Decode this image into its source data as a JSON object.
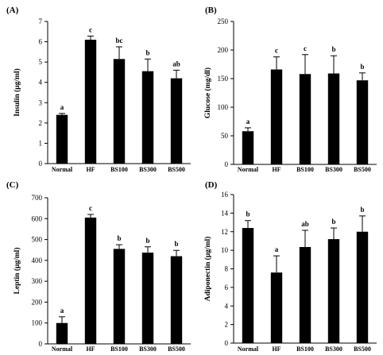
{
  "chart_data": [
    {
      "panel": "(A)",
      "type": "bar",
      "categories": [
        "Normal",
        "HF",
        "BS100",
        "BS300",
        "BS500"
      ],
      "values": [
        2.4,
        6.1,
        5.15,
        4.55,
        4.2
      ],
      "errors": [
        0.07,
        0.18,
        0.6,
        0.6,
        0.4
      ],
      "significance": [
        "a",
        "c",
        "bc",
        "b",
        "ab"
      ],
      "ylabel": "Insulin (μg/ml)",
      "ylim": [
        0,
        7
      ],
      "yticks": [
        0,
        1,
        2,
        3,
        4,
        5,
        6,
        7
      ],
      "bar_color": "#000000",
      "grid": false
    },
    {
      "panel": "(B)",
      "type": "bar",
      "categories": [
        "Normal",
        "HF",
        "BS100",
        "BS300",
        "BS500"
      ],
      "values": [
        58,
        166,
        158,
        159,
        147
      ],
      "errors": [
        6,
        22,
        34,
        31,
        13
      ],
      "significance": [
        "a",
        "c",
        "c",
        "b",
        "b"
      ],
      "ylabel": "Glucose (mg/dl)",
      "ylim": [
        0,
        250
      ],
      "yticks": [
        0,
        50,
        100,
        150,
        200,
        250
      ],
      "bar_color": "#000000",
      "grid": false
    },
    {
      "panel": "(C)",
      "type": "bar",
      "categories": [
        "Normal",
        "HF",
        "BS100",
        "BS300",
        "BS500"
      ],
      "values": [
        100,
        605,
        455,
        437,
        420
      ],
      "errors": [
        30,
        15,
        20,
        28,
        28
      ],
      "significance": [
        "a",
        "c",
        "b",
        "b",
        "b"
      ],
      "ylabel": "Leptin (μg/ml)",
      "ylim": [
        0,
        700
      ],
      "yticks": [
        0,
        100,
        200,
        300,
        400,
        500,
        600,
        700
      ],
      "bar_color": "#000000",
      "grid": false
    },
    {
      "panel": "(D)",
      "type": "bar",
      "categories": [
        "Normal",
        "HF",
        "BS100",
        "BS300",
        "BS500"
      ],
      "values": [
        12.4,
        7.6,
        10.35,
        11.2,
        12.0
      ],
      "errors": [
        0.8,
        1.8,
        1.8,
        1.2,
        1.7
      ],
      "significance": [
        "b",
        "a",
        "ab",
        "b",
        "b"
      ],
      "ylabel": "Adiponectin (μg/ml)",
      "ylim": [
        0,
        16
      ],
      "yticks": [
        0,
        2,
        4,
        6,
        8,
        10,
        12,
        14,
        16
      ],
      "bar_color": "#000000",
      "grid": false
    }
  ]
}
